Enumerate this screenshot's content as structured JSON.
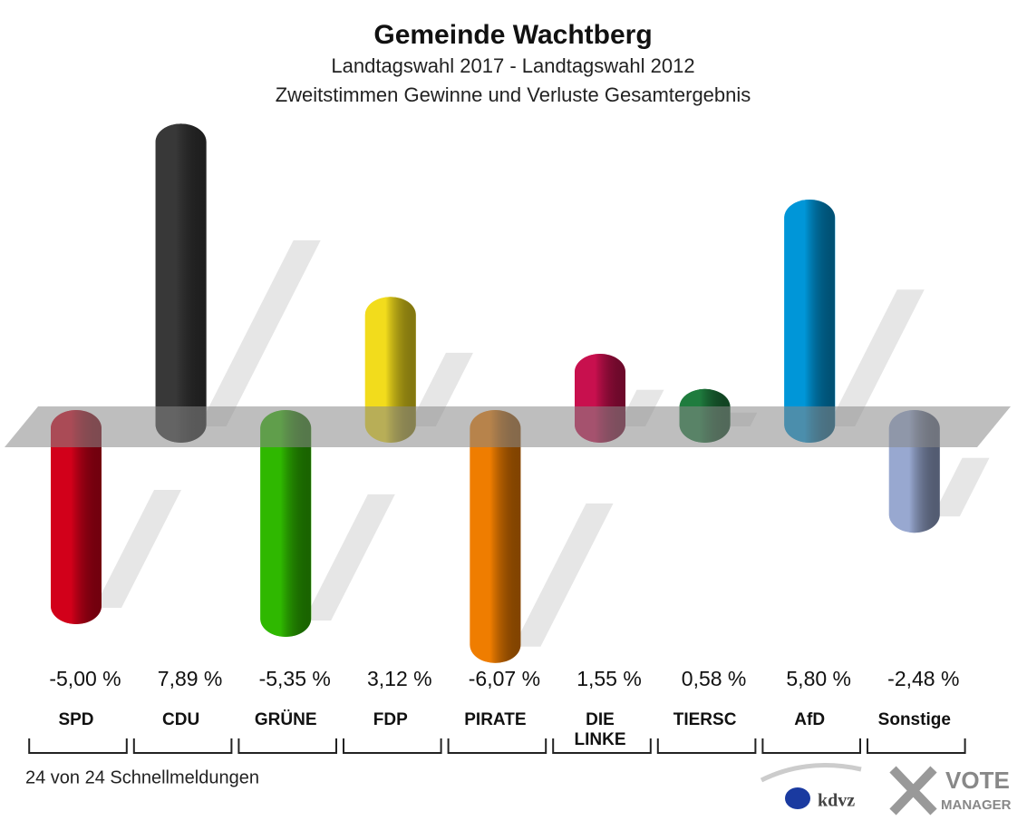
{
  "chart_data": {
    "type": "bar",
    "title": "Gemeinde Wachtberg",
    "subtitle": [
      "Landtagswahl 2017 - Landtagswahl 2012",
      "Zweitstimmen Gewinne und Verluste Gesamtergebnis"
    ],
    "categories": [
      "SPD",
      "CDU",
      "GRÜNE",
      "FDP",
      "PIRATE",
      "DIE LINKE",
      "TIERSC",
      "AfD",
      "Sonstige"
    ],
    "values": [
      -5.0,
      7.89,
      -5.35,
      3.12,
      -6.07,
      1.55,
      0.58,
      5.8,
      -2.48
    ],
    "value_labels": [
      "-5,00 %",
      "7,89 %",
      "-5,35 %",
      "3,12 %",
      "-6,07 %",
      "1,55 %",
      "0,58 %",
      "5,80 %",
      "-2,48 %"
    ],
    "colors": [
      "#d2001a",
      "#383838",
      "#2fb800",
      "#f2dc1c",
      "#ef7d00",
      "#c8104e",
      "#1f7c3e",
      "#0096d8",
      "#98a8d0"
    ],
    "ylim": [
      -7,
      8.5
    ],
    "footnote": "24 von 24 Schnellmeldungen",
    "logos": [
      "kdvz",
      "VOTE",
      "MANAGER"
    ]
  }
}
